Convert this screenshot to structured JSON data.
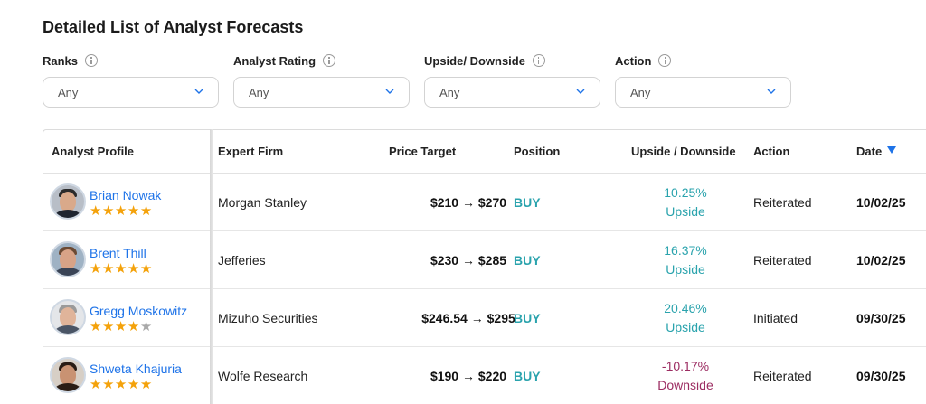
{
  "title": "Detailed List of Analyst Forecasts",
  "filters": [
    {
      "label": "Ranks",
      "value": "Any"
    },
    {
      "label": "Analyst Rating",
      "value": "Any"
    },
    {
      "label": "Upside/ Downside",
      "value": "Any"
    },
    {
      "label": "Action",
      "value": "Any"
    }
  ],
  "table": {
    "headers": {
      "analyst_profile": "Analyst Profile",
      "expert_firm": "Expert Firm",
      "price_target": "Price Target",
      "position": "Position",
      "upside_downside": "Upside / Downside",
      "action": "Action",
      "date": "Date"
    },
    "sort": {
      "column": "Date",
      "direction": "descending"
    },
    "rows": [
      {
        "name": "Brian Nowak",
        "rating": 5,
        "firm": "Morgan Stanley",
        "price_target": "$210 → $270",
        "position": "BUY",
        "change": "10.25%",
        "change_label": "Upside",
        "action": "Reiterated",
        "date": "10/02/25"
      },
      {
        "name": "Brent Thill",
        "rating": 5,
        "firm": "Jefferies",
        "price_target": "$230 → $285",
        "position": "BUY",
        "change": "16.37%",
        "change_label": "Upside",
        "action": "Reiterated",
        "date": "10/02/25"
      },
      {
        "name": "Gregg Moskowitz",
        "rating": 4,
        "firm": "Mizuho Securities",
        "price_target": "$246.54 → $295",
        "position": "BUY",
        "change": "20.46%",
        "change_label": "Upside",
        "action": "Initiated",
        "date": "09/30/25"
      },
      {
        "name": "Shweta Khajuria",
        "rating": 5,
        "firm": "Wolfe Research",
        "price_target": "$190 → $220",
        "position": "BUY",
        "change": "-10.17%",
        "change_label": "Downside",
        "action": "Reiterated",
        "date": "09/30/25"
      }
    ]
  },
  "colors": {
    "link": "#1e73e8",
    "buy": "#2aa3ad",
    "upside": "#2aa3ad",
    "downside": "#9c2d62",
    "star": "#f4a20b",
    "star_empty": "#a9a9a9"
  },
  "icons": [
    "info-icon",
    "chevron-down-icon",
    "sort-desc-icon",
    "star-icon",
    "avatar"
  ]
}
